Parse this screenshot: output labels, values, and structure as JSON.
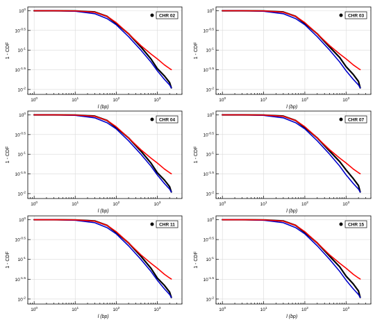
{
  "chart_data": [
    {
      "type": "line",
      "legend": "CHR 02",
      "legend_position": "top-right",
      "xlabel": "l (bp)",
      "ylabel": "1 - CDF",
      "xscale": "log",
      "yscale": "log",
      "xlim": [
        0.7,
        4000
      ],
      "ylim": [
        0.0075,
        1.25
      ],
      "grid": true,
      "xticks": [
        "10^0",
        "10^1",
        "10^2",
        "10^3"
      ],
      "yticks": [
        "10^0",
        "10^-0.5",
        "10^-1",
        "10^-1.5",
        "10^-2"
      ],
      "series": [
        {
          "color": "#000000",
          "x": [
            1,
            3,
            10,
            30,
            60,
            100,
            200,
            400,
            700,
            1000,
            1500,
            2000,
            2200
          ],
          "y": [
            1.0,
            1.0,
            0.99,
            0.93,
            0.72,
            0.48,
            0.26,
            0.12,
            0.06,
            0.034,
            0.022,
            0.015,
            0.011
          ]
        },
        {
          "color": "#0000cc",
          "x": [
            1,
            3,
            10,
            30,
            60,
            100,
            200,
            400,
            700,
            1000,
            1500,
            2000,
            2200
          ],
          "y": [
            1.0,
            1.0,
            0.97,
            0.84,
            0.63,
            0.44,
            0.22,
            0.1,
            0.05,
            0.03,
            0.018,
            0.013,
            0.011
          ]
        },
        {
          "color": "#ff0000",
          "x": [
            1,
            3,
            10,
            30,
            60,
            100,
            200,
            400,
            700,
            1000,
            1500,
            2000,
            2200
          ],
          "y": [
            1.0,
            1.0,
            0.99,
            0.92,
            0.72,
            0.5,
            0.26,
            0.13,
            0.08,
            0.06,
            0.042,
            0.034,
            0.032
          ]
        }
      ]
    },
    {
      "type": "line",
      "legend": "CHR 03",
      "legend_position": "top-right",
      "xlabel": "l (bp)",
      "ylabel": "1 - CDF",
      "xscale": "log",
      "yscale": "log",
      "xlim": [
        0.7,
        4000
      ],
      "ylim": [
        0.0075,
        1.25
      ],
      "grid": true,
      "xticks": [
        "10^0",
        "10^1",
        "10^2",
        "10^3"
      ],
      "yticks": [
        "10^0",
        "10^-0.5",
        "10^-1",
        "10^-1.5",
        "10^-2"
      ],
      "series": [
        {
          "color": "#000000",
          "x": [
            1,
            3,
            10,
            30,
            60,
            100,
            200,
            400,
            700,
            1000,
            1500,
            2000,
            2200
          ],
          "y": [
            1.0,
            1.0,
            0.99,
            0.93,
            0.72,
            0.48,
            0.26,
            0.12,
            0.065,
            0.038,
            0.024,
            0.016,
            0.011
          ]
        },
        {
          "color": "#0000cc",
          "x": [
            1,
            3,
            10,
            30,
            60,
            100,
            200,
            400,
            700,
            1000,
            1500,
            2000,
            2200
          ],
          "y": [
            1.0,
            1.0,
            0.97,
            0.84,
            0.63,
            0.44,
            0.22,
            0.1,
            0.05,
            0.03,
            0.018,
            0.013,
            0.011
          ]
        },
        {
          "color": "#ff0000",
          "x": [
            1,
            3,
            10,
            30,
            60,
            100,
            200,
            400,
            700,
            1000,
            1500,
            2000,
            2200
          ],
          "y": [
            1.0,
            1.0,
            0.99,
            0.92,
            0.72,
            0.5,
            0.26,
            0.13,
            0.08,
            0.06,
            0.042,
            0.034,
            0.032
          ]
        }
      ]
    },
    {
      "type": "line",
      "legend": "CHR 04",
      "legend_position": "top-right",
      "xlabel": "l (bp)",
      "ylabel": "1 - CDF",
      "xscale": "log",
      "yscale": "log",
      "xlim": [
        0.7,
        4000
      ],
      "ylim": [
        0.0075,
        1.25
      ],
      "grid": true,
      "xticks": [
        "10^0",
        "10^1",
        "10^2",
        "10^3"
      ],
      "yticks": [
        "10^0",
        "10^-0.5",
        "10^-1",
        "10^-1.5",
        "10^-2"
      ],
      "series": [
        {
          "color": "#000000",
          "x": [
            1,
            3,
            10,
            30,
            60,
            100,
            200,
            400,
            700,
            1000,
            1500,
            2000,
            2200
          ],
          "y": [
            1.0,
            1.0,
            0.99,
            0.93,
            0.72,
            0.48,
            0.26,
            0.12,
            0.06,
            0.034,
            0.022,
            0.015,
            0.011
          ]
        },
        {
          "color": "#0000cc",
          "x": [
            1,
            3,
            10,
            30,
            60,
            100,
            200,
            400,
            700,
            1000,
            1500,
            2000,
            2200
          ],
          "y": [
            1.0,
            1.0,
            0.97,
            0.84,
            0.63,
            0.44,
            0.22,
            0.1,
            0.05,
            0.03,
            0.018,
            0.013,
            0.011
          ]
        },
        {
          "color": "#ff0000",
          "x": [
            1,
            3,
            10,
            30,
            60,
            100,
            200,
            400,
            700,
            1000,
            1500,
            2000,
            2200
          ],
          "y": [
            1.0,
            1.0,
            0.99,
            0.92,
            0.72,
            0.5,
            0.26,
            0.13,
            0.08,
            0.06,
            0.042,
            0.034,
            0.032
          ]
        }
      ]
    },
    {
      "type": "line",
      "legend": "CHR 07",
      "legend_position": "top-right",
      "xlabel": "l (bp)",
      "ylabel": "1 - CDF",
      "xscale": "log",
      "yscale": "log",
      "xlim": [
        0.7,
        4000
      ],
      "ylim": [
        0.0075,
        1.25
      ],
      "grid": true,
      "xticks": [
        "10^0",
        "10^1",
        "10^2",
        "10^3"
      ],
      "yticks": [
        "10^0",
        "10^-0.5",
        "10^-1",
        "10^-1.5",
        "10^-2"
      ],
      "series": [
        {
          "color": "#000000",
          "x": [
            1,
            3,
            10,
            30,
            60,
            100,
            200,
            400,
            700,
            1000,
            1500,
            2000,
            2200
          ],
          "y": [
            1.0,
            1.0,
            0.99,
            0.93,
            0.72,
            0.48,
            0.26,
            0.12,
            0.065,
            0.04,
            0.024,
            0.016,
            0.011
          ]
        },
        {
          "color": "#0000cc",
          "x": [
            1,
            3,
            10,
            30,
            60,
            100,
            200,
            400,
            700,
            1000,
            1500,
            2000,
            2200
          ],
          "y": [
            1.0,
            1.0,
            0.97,
            0.84,
            0.63,
            0.44,
            0.22,
            0.1,
            0.05,
            0.03,
            0.018,
            0.013,
            0.011
          ]
        },
        {
          "color": "#ff0000",
          "x": [
            1,
            3,
            10,
            30,
            60,
            100,
            200,
            400,
            700,
            1000,
            1500,
            2000,
            2200
          ],
          "y": [
            1.0,
            1.0,
            0.99,
            0.92,
            0.72,
            0.5,
            0.26,
            0.13,
            0.08,
            0.06,
            0.042,
            0.034,
            0.032
          ]
        }
      ]
    },
    {
      "type": "line",
      "legend": "CHR 11",
      "legend_position": "top-right",
      "xlabel": "l (bp)",
      "ylabel": "1 - CDF",
      "xscale": "log",
      "yscale": "log",
      "xlim": [
        0.7,
        4000
      ],
      "ylim": [
        0.0075,
        1.25
      ],
      "grid": true,
      "xticks": [
        "10^0",
        "10^1",
        "10^2",
        "10^3"
      ],
      "yticks": [
        "10^0",
        "10^-0.5",
        "10^-1",
        "10^-1.5",
        "10^-2"
      ],
      "series": [
        {
          "color": "#000000",
          "x": [
            1,
            3,
            10,
            30,
            60,
            100,
            200,
            400,
            700,
            1000,
            1500,
            2000,
            2200
          ],
          "y": [
            1.0,
            1.0,
            0.99,
            0.93,
            0.72,
            0.48,
            0.26,
            0.12,
            0.06,
            0.034,
            0.022,
            0.015,
            0.011
          ]
        },
        {
          "color": "#0000cc",
          "x": [
            1,
            3,
            10,
            30,
            60,
            100,
            200,
            400,
            700,
            1000,
            1500,
            2000,
            2200
          ],
          "y": [
            1.0,
            1.0,
            0.97,
            0.84,
            0.63,
            0.44,
            0.22,
            0.1,
            0.05,
            0.03,
            0.018,
            0.013,
            0.011
          ]
        },
        {
          "color": "#ff0000",
          "x": [
            1,
            3,
            10,
            30,
            60,
            100,
            200,
            400,
            700,
            1000,
            1500,
            2000,
            2200
          ],
          "y": [
            1.0,
            1.0,
            0.99,
            0.92,
            0.72,
            0.5,
            0.26,
            0.13,
            0.08,
            0.06,
            0.042,
            0.034,
            0.032
          ]
        }
      ]
    },
    {
      "type": "line",
      "legend": "CHR 15",
      "legend_position": "top-right",
      "xlabel": "l (bp)",
      "ylabel": "1 - CDF",
      "xscale": "log",
      "yscale": "log",
      "xlim": [
        0.7,
        4000
      ],
      "ylim": [
        0.0075,
        1.25
      ],
      "grid": true,
      "xticks": [
        "10^0",
        "10^1",
        "10^2",
        "10^3"
      ],
      "yticks": [
        "10^0",
        "10^-0.5",
        "10^-1",
        "10^-1.5",
        "10^-2"
      ],
      "series": [
        {
          "color": "#000000",
          "x": [
            1,
            3,
            10,
            30,
            60,
            100,
            200,
            400,
            700,
            1000,
            1500,
            2000,
            2200
          ],
          "y": [
            1.0,
            1.0,
            0.99,
            0.93,
            0.72,
            0.48,
            0.26,
            0.12,
            0.065,
            0.038,
            0.024,
            0.016,
            0.011
          ]
        },
        {
          "color": "#0000cc",
          "x": [
            1,
            3,
            10,
            30,
            60,
            100,
            200,
            400,
            700,
            1000,
            1500,
            2000,
            2200
          ],
          "y": [
            1.0,
            1.0,
            0.97,
            0.84,
            0.63,
            0.44,
            0.22,
            0.1,
            0.05,
            0.03,
            0.018,
            0.013,
            0.011
          ]
        },
        {
          "color": "#ff0000",
          "x": [
            1,
            3,
            10,
            30,
            60,
            100,
            200,
            400,
            700,
            1000,
            1500,
            2000,
            2200
          ],
          "y": [
            1.0,
            1.0,
            0.99,
            0.92,
            0.72,
            0.5,
            0.26,
            0.13,
            0.08,
            0.06,
            0.042,
            0.034,
            0.032
          ]
        }
      ]
    }
  ]
}
